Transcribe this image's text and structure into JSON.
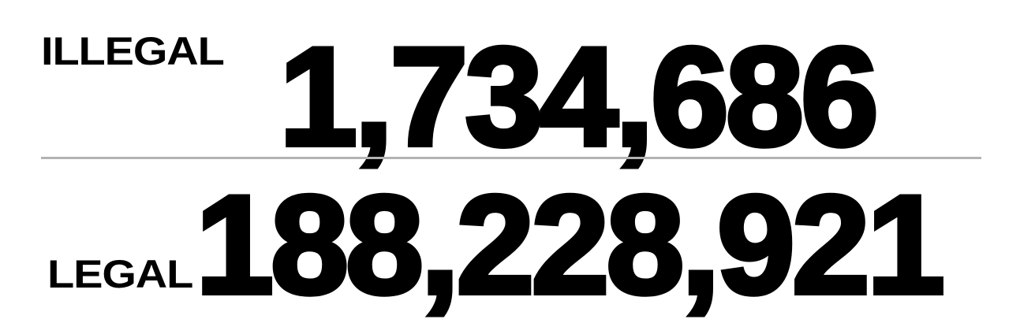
{
  "illegal": {
    "label": "ILLEGAL",
    "value": "1,734,686"
  },
  "legal": {
    "label": "LEGAL",
    "value": "188,228,921"
  },
  "colors": {
    "text": "#000000",
    "divider": "#b3b3b3",
    "background": "#ffffff"
  }
}
